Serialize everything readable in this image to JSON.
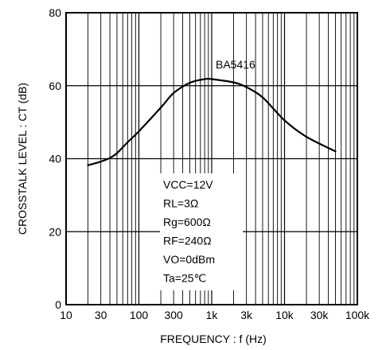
{
  "chart_data": {
    "type": "line",
    "xlabel": "FREQUENCY : f (Hz)",
    "ylabel": "CROSSTALK LEVEL : CT (dB)",
    "xscale": "log",
    "xlim": [
      10,
      100000
    ],
    "ylim": [
      0,
      80
    ],
    "grid": true,
    "x_ticks": [
      10,
      30,
      100,
      300,
      1000,
      3000,
      10000,
      30000,
      100000
    ],
    "x_tick_labels": [
      "10",
      "30",
      "100",
      "300",
      "1k",
      "3k",
      "10k",
      "30k",
      "100k"
    ],
    "y_ticks": [
      0,
      20,
      40,
      60,
      80
    ],
    "y_tick_labels": [
      "0",
      "20",
      "40",
      "60",
      "80"
    ],
    "series": [
      {
        "name": "BA5416",
        "x": [
          20,
          30,
          40,
          50,
          70,
          100,
          200,
          300,
          500,
          800,
          1000,
          2000,
          3000,
          5000,
          10000,
          20000,
          50000
        ],
        "y": [
          38.2,
          39.2,
          40.2,
          41.5,
          44.5,
          47.5,
          54,
          58,
          60.8,
          61.8,
          61.8,
          60.9,
          59.6,
          56.8,
          50.5,
          46,
          42
        ]
      }
    ],
    "annotations": {
      "series_label": "BA5416",
      "conditions": [
        "VCC=12V",
        "RL=3Ω",
        "Rg=600Ω",
        "RF=240Ω",
        "VO=0dBm",
        "Ta=25℃"
      ]
    },
    "colors": {
      "curve": "#000000",
      "grid": "#000000",
      "background": "#ffffff"
    }
  }
}
